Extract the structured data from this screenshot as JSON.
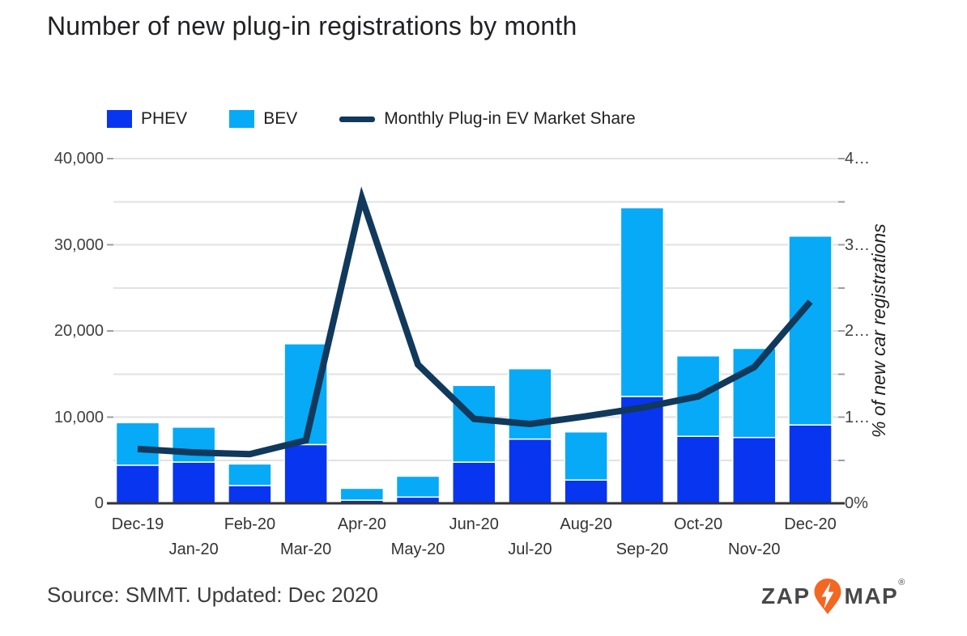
{
  "title": "Number of new plug-in registrations by month",
  "legend": {
    "phev_label": "PHEV",
    "bev_label": "BEV",
    "line_label": "Monthly Plug-in EV Market Share"
  },
  "colors": {
    "phev": "#0835f0",
    "bev": "#06aaf6",
    "line": "#10395c",
    "grid": "#e2e2e2",
    "tick": "#9e9e9e",
    "baseline": "#333333"
  },
  "chart_data": {
    "type": "combo: stacked bar + line",
    "categories": [
      "Dec-19",
      "Jan-20",
      "Feb-20",
      "Mar-20",
      "Apr-20",
      "May-20",
      "Jun-20",
      "Jul-20",
      "Aug-20",
      "Sep-20",
      "Oct-20",
      "Nov-20",
      "Dec-20"
    ],
    "series": [
      {
        "name": "PHEV",
        "type": "bar",
        "stack": true,
        "axis": "left",
        "values": [
          4418,
          4788,
          2058,
          6818,
          367,
          723,
          4778,
          7455,
          2701,
          12400,
          7775,
          7635,
          9093
        ]
      },
      {
        "name": "BEV",
        "type": "bar",
        "stack": true,
        "axis": "left",
        "values": [
          4939,
          4054,
          2508,
          11694,
          1374,
          2424,
          8903,
          8162,
          5589,
          21903,
          9335,
          10345,
          21914
        ]
      },
      {
        "name": "Monthly Plug-in EV Market Share",
        "type": "line",
        "axis": "right",
        "values": [
          6.3,
          5.9,
          5.7,
          7.3,
          35.4,
          16.1,
          9.8,
          9.2,
          10.1,
          11.1,
          12.4,
          15.8,
          23.4
        ]
      }
    ],
    "left_axis": {
      "min": 0,
      "max": 40000,
      "gridline_step": 5000,
      "label_step": 10000,
      "tick_labels": [
        "0",
        "10,000",
        "20,000",
        "30,000",
        "40,000"
      ]
    },
    "right_axis": {
      "min": 0,
      "max": 40,
      "label_step": 10,
      "tick_labels": [
        "0%",
        "1…",
        "2…",
        "3…",
        "4…"
      ],
      "title": "% of new car registrations"
    },
    "grid": true,
    "legend_position": "top"
  },
  "footer": {
    "source": "Source: SMMT. Updated: Dec 2020"
  },
  "logo": {
    "zap": "ZAP",
    "map": "MAP",
    "reg": "®"
  }
}
